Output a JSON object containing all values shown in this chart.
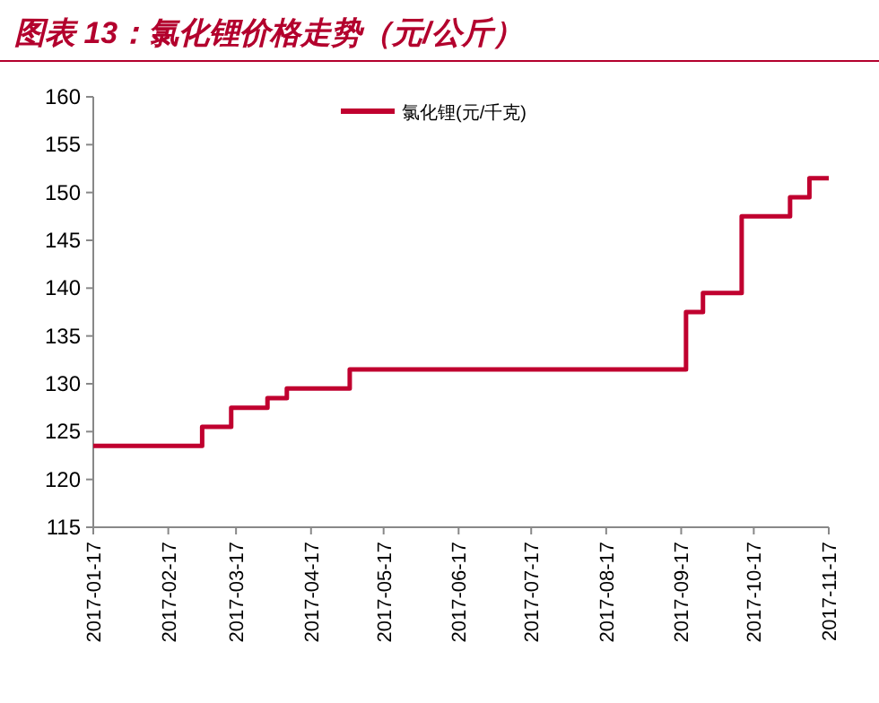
{
  "chart_data": {
    "type": "step",
    "title": "图表 13：氯化锂价格走势（元/公斤）",
    "x": [
      "2017-01-17",
      "2017-03-03",
      "2017-03-15",
      "2017-03-30",
      "2017-04-07",
      "2017-05-03",
      "2017-09-19",
      "2017-09-26",
      "2017-10-12",
      "2017-11-01",
      "2017-11-09",
      "2017-11-17"
    ],
    "series": [
      {
        "name": "氯化锂(元/千克)",
        "color": "#c0002f",
        "values": [
          123.5,
          125.5,
          127.5,
          128.5,
          129.5,
          131.5,
          137.5,
          139.5,
          147.5,
          149.5,
          151.5,
          151.5
        ]
      }
    ],
    "xlim": [
      "2017-01-17",
      "2017-11-17"
    ],
    "xticks": [
      "2017-01-17",
      "2017-02-17",
      "2017-03-17",
      "2017-04-17",
      "2017-05-17",
      "2017-06-17",
      "2017-07-17",
      "2017-08-17",
      "2017-09-17",
      "2017-10-17",
      "2017-11-17"
    ],
    "ylim": [
      115,
      160
    ],
    "yticks": [
      115,
      120,
      125,
      130,
      135,
      140,
      145,
      150,
      155,
      160
    ],
    "legend": "top right"
  }
}
